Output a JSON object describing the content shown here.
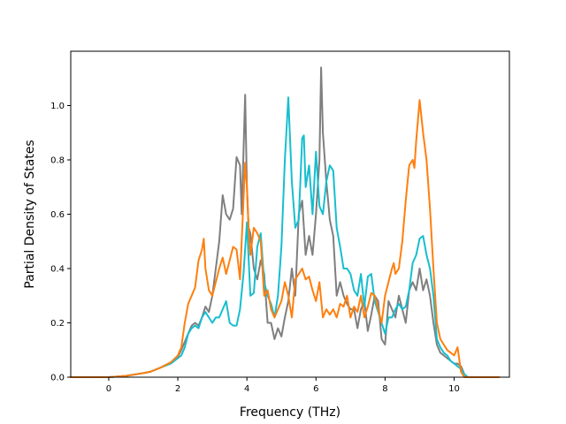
{
  "chart_data": {
    "type": "line",
    "title": "",
    "xlabel": "Frequency (THz)",
    "ylabel": "Partial Density of States",
    "xlim": [
      -1.1,
      11.6
    ],
    "ylim": [
      0.0,
      1.2
    ],
    "xticks": [
      0,
      2,
      4,
      6,
      8,
      10
    ],
    "yticks": [
      0.0,
      0.2,
      0.4,
      0.6,
      0.8,
      1.0
    ],
    "xtick_labels": [
      "0",
      "2",
      "4",
      "6",
      "8",
      "10"
    ],
    "ytick_labels": [
      "0.0",
      "0.2",
      "0.4",
      "0.6",
      "0.8",
      "1.0"
    ],
    "grid": false,
    "legend": "none",
    "series": [
      {
        "color": "#7f7f7f",
        "points": [
          [
            -1.1,
            0
          ],
          [
            0,
            0
          ],
          [
            0.5,
            0.005
          ],
          [
            1.0,
            0.015
          ],
          [
            1.2,
            0.02
          ],
          [
            1.5,
            0.035
          ],
          [
            1.8,
            0.055
          ],
          [
            2.0,
            0.075
          ],
          [
            2.1,
            0.1
          ],
          [
            2.2,
            0.13
          ],
          [
            2.3,
            0.16
          ],
          [
            2.4,
            0.19
          ],
          [
            2.5,
            0.2
          ],
          [
            2.6,
            0.19
          ],
          [
            2.7,
            0.22
          ],
          [
            2.8,
            0.26
          ],
          [
            2.9,
            0.24
          ],
          [
            3.0,
            0.3
          ],
          [
            3.1,
            0.4
          ],
          [
            3.2,
            0.5
          ],
          [
            3.3,
            0.67
          ],
          [
            3.4,
            0.6
          ],
          [
            3.5,
            0.58
          ],
          [
            3.6,
            0.62
          ],
          [
            3.7,
            0.81
          ],
          [
            3.8,
            0.78
          ],
          [
            3.85,
            0.6
          ],
          [
            3.95,
            1.04
          ],
          [
            4.0,
            0.7
          ],
          [
            4.05,
            0.55
          ],
          [
            4.1,
            0.53
          ],
          [
            4.2,
            0.4
          ],
          [
            4.3,
            0.36
          ],
          [
            4.4,
            0.43
          ],
          [
            4.5,
            0.38
          ],
          [
            4.6,
            0.2
          ],
          [
            4.7,
            0.2
          ],
          [
            4.8,
            0.14
          ],
          [
            4.9,
            0.18
          ],
          [
            5.0,
            0.15
          ],
          [
            5.1,
            0.22
          ],
          [
            5.2,
            0.28
          ],
          [
            5.3,
            0.4
          ],
          [
            5.4,
            0.3
          ],
          [
            5.5,
            0.6
          ],
          [
            5.6,
            0.65
          ],
          [
            5.7,
            0.45
          ],
          [
            5.8,
            0.52
          ],
          [
            5.9,
            0.45
          ],
          [
            6.0,
            0.6
          ],
          [
            6.1,
            0.8
          ],
          [
            6.15,
            1.14
          ],
          [
            6.2,
            0.9
          ],
          [
            6.3,
            0.72
          ],
          [
            6.35,
            0.65
          ],
          [
            6.4,
            0.58
          ],
          [
            6.5,
            0.52
          ],
          [
            6.6,
            0.3
          ],
          [
            6.7,
            0.35
          ],
          [
            6.8,
            0.3
          ],
          [
            6.9,
            0.27
          ],
          [
            7.0,
            0.25
          ],
          [
            7.1,
            0.25
          ],
          [
            7.2,
            0.18
          ],
          [
            7.3,
            0.25
          ],
          [
            7.4,
            0.28
          ],
          [
            7.5,
            0.17
          ],
          [
            7.6,
            0.23
          ],
          [
            7.7,
            0.3
          ],
          [
            7.8,
            0.28
          ],
          [
            7.9,
            0.14
          ],
          [
            8.0,
            0.12
          ],
          [
            8.1,
            0.28
          ],
          [
            8.2,
            0.25
          ],
          [
            8.3,
            0.22
          ],
          [
            8.4,
            0.3
          ],
          [
            8.5,
            0.25
          ],
          [
            8.6,
            0.2
          ],
          [
            8.7,
            0.32
          ],
          [
            8.8,
            0.35
          ],
          [
            8.9,
            0.32
          ],
          [
            9.0,
            0.4
          ],
          [
            9.1,
            0.32
          ],
          [
            9.2,
            0.36
          ],
          [
            9.3,
            0.3
          ],
          [
            9.4,
            0.2
          ],
          [
            9.5,
            0.12
          ],
          [
            9.6,
            0.09
          ],
          [
            9.7,
            0.08
          ],
          [
            9.8,
            0.07
          ],
          [
            9.9,
            0.06
          ],
          [
            10.0,
            0.05
          ],
          [
            10.1,
            0.05
          ],
          [
            10.2,
            0.04
          ],
          [
            10.3,
            0.01
          ],
          [
            10.4,
            0
          ],
          [
            11.3,
            0
          ]
        ]
      },
      {
        "color": "#17becf",
        "points": [
          [
            -1.1,
            0
          ],
          [
            0,
            0
          ],
          [
            0.5,
            0.005
          ],
          [
            1.0,
            0.015
          ],
          [
            1.2,
            0.02
          ],
          [
            1.5,
            0.035
          ],
          [
            1.8,
            0.05
          ],
          [
            2.0,
            0.07
          ],
          [
            2.1,
            0.08
          ],
          [
            2.2,
            0.11
          ],
          [
            2.3,
            0.16
          ],
          [
            2.4,
            0.18
          ],
          [
            2.5,
            0.19
          ],
          [
            2.6,
            0.18
          ],
          [
            2.7,
            0.22
          ],
          [
            2.8,
            0.24
          ],
          [
            2.9,
            0.22
          ],
          [
            3.0,
            0.2
          ],
          [
            3.1,
            0.22
          ],
          [
            3.2,
            0.22
          ],
          [
            3.3,
            0.25
          ],
          [
            3.4,
            0.28
          ],
          [
            3.5,
            0.2
          ],
          [
            3.6,
            0.19
          ],
          [
            3.7,
            0.19
          ],
          [
            3.8,
            0.25
          ],
          [
            3.9,
            0.38
          ],
          [
            4.0,
            0.57
          ],
          [
            4.1,
            0.3
          ],
          [
            4.2,
            0.31
          ],
          [
            4.3,
            0.48
          ],
          [
            4.4,
            0.53
          ],
          [
            4.5,
            0.35
          ],
          [
            4.6,
            0.3
          ],
          [
            4.7,
            0.27
          ],
          [
            4.8,
            0.22
          ],
          [
            4.9,
            0.3
          ],
          [
            5.0,
            0.48
          ],
          [
            5.1,
            0.8
          ],
          [
            5.2,
            1.03
          ],
          [
            5.3,
            0.72
          ],
          [
            5.4,
            0.55
          ],
          [
            5.5,
            0.58
          ],
          [
            5.6,
            0.88
          ],
          [
            5.65,
            0.89
          ],
          [
            5.7,
            0.7
          ],
          [
            5.8,
            0.78
          ],
          [
            5.9,
            0.6
          ],
          [
            6.0,
            0.83
          ],
          [
            6.1,
            0.63
          ],
          [
            6.2,
            0.6
          ],
          [
            6.3,
            0.72
          ],
          [
            6.4,
            0.78
          ],
          [
            6.5,
            0.76
          ],
          [
            6.6,
            0.55
          ],
          [
            6.7,
            0.48
          ],
          [
            6.8,
            0.4
          ],
          [
            6.9,
            0.4
          ],
          [
            7.0,
            0.38
          ],
          [
            7.1,
            0.32
          ],
          [
            7.2,
            0.3
          ],
          [
            7.3,
            0.38
          ],
          [
            7.4,
            0.26
          ],
          [
            7.5,
            0.37
          ],
          [
            7.6,
            0.38
          ],
          [
            7.7,
            0.28
          ],
          [
            7.8,
            0.24
          ],
          [
            7.9,
            0.2
          ],
          [
            8.0,
            0.16
          ],
          [
            8.1,
            0.22
          ],
          [
            8.2,
            0.22
          ],
          [
            8.3,
            0.25
          ],
          [
            8.4,
            0.27
          ],
          [
            8.5,
            0.25
          ],
          [
            8.6,
            0.26
          ],
          [
            8.7,
            0.32
          ],
          [
            8.8,
            0.42
          ],
          [
            8.9,
            0.45
          ],
          [
            9.0,
            0.51
          ],
          [
            9.1,
            0.52
          ],
          [
            9.2,
            0.45
          ],
          [
            9.3,
            0.4
          ],
          [
            9.4,
            0.3
          ],
          [
            9.5,
            0.14
          ],
          [
            9.6,
            0.11
          ],
          [
            9.7,
            0.09
          ],
          [
            9.8,
            0.08
          ],
          [
            9.9,
            0.06
          ],
          [
            10.0,
            0.05
          ],
          [
            10.1,
            0.04
          ],
          [
            10.2,
            0.03
          ],
          [
            10.3,
            0.01
          ],
          [
            10.4,
            0
          ],
          [
            11.3,
            0
          ]
        ]
      },
      {
        "color": "#ff7f0e",
        "points": [
          [
            -1.1,
            0
          ],
          [
            0,
            0
          ],
          [
            0.5,
            0.005
          ],
          [
            1.0,
            0.015
          ],
          [
            1.2,
            0.02
          ],
          [
            1.5,
            0.035
          ],
          [
            1.8,
            0.055
          ],
          [
            2.0,
            0.08
          ],
          [
            2.1,
            0.11
          ],
          [
            2.2,
            0.2
          ],
          [
            2.3,
            0.27
          ],
          [
            2.4,
            0.3
          ],
          [
            2.5,
            0.33
          ],
          [
            2.6,
            0.43
          ],
          [
            2.7,
            0.47
          ],
          [
            2.75,
            0.51
          ],
          [
            2.8,
            0.4
          ],
          [
            2.9,
            0.32
          ],
          [
            3.0,
            0.3
          ],
          [
            3.1,
            0.35
          ],
          [
            3.2,
            0.4
          ],
          [
            3.3,
            0.44
          ],
          [
            3.4,
            0.38
          ],
          [
            3.5,
            0.43
          ],
          [
            3.6,
            0.48
          ],
          [
            3.7,
            0.47
          ],
          [
            3.8,
            0.36
          ],
          [
            3.9,
            0.65
          ],
          [
            3.95,
            0.79
          ],
          [
            4.0,
            0.7
          ],
          [
            4.05,
            0.55
          ],
          [
            4.1,
            0.45
          ],
          [
            4.2,
            0.55
          ],
          [
            4.3,
            0.53
          ],
          [
            4.4,
            0.5
          ],
          [
            4.5,
            0.3
          ],
          [
            4.6,
            0.32
          ],
          [
            4.7,
            0.25
          ],
          [
            4.8,
            0.22
          ],
          [
            4.9,
            0.25
          ],
          [
            5.0,
            0.28
          ],
          [
            5.1,
            0.35
          ],
          [
            5.2,
            0.3
          ],
          [
            5.3,
            0.22
          ],
          [
            5.4,
            0.36
          ],
          [
            5.5,
            0.38
          ],
          [
            5.6,
            0.4
          ],
          [
            5.7,
            0.36
          ],
          [
            5.8,
            0.37
          ],
          [
            5.9,
            0.32
          ],
          [
            6.0,
            0.28
          ],
          [
            6.1,
            0.35
          ],
          [
            6.2,
            0.22
          ],
          [
            6.3,
            0.25
          ],
          [
            6.4,
            0.23
          ],
          [
            6.5,
            0.25
          ],
          [
            6.6,
            0.22
          ],
          [
            6.7,
            0.27
          ],
          [
            6.8,
            0.26
          ],
          [
            6.9,
            0.3
          ],
          [
            7.0,
            0.22
          ],
          [
            7.1,
            0.26
          ],
          [
            7.2,
            0.24
          ],
          [
            7.3,
            0.3
          ],
          [
            7.4,
            0.22
          ],
          [
            7.5,
            0.26
          ],
          [
            7.6,
            0.31
          ],
          [
            7.7,
            0.3
          ],
          [
            7.8,
            0.25
          ],
          [
            7.9,
            0.2
          ],
          [
            8.0,
            0.3
          ],
          [
            8.1,
            0.35
          ],
          [
            8.2,
            0.4
          ],
          [
            8.25,
            0.42
          ],
          [
            8.3,
            0.38
          ],
          [
            8.4,
            0.4
          ],
          [
            8.5,
            0.5
          ],
          [
            8.6,
            0.65
          ],
          [
            8.7,
            0.78
          ],
          [
            8.8,
            0.8
          ],
          [
            8.85,
            0.77
          ],
          [
            8.9,
            0.87
          ],
          [
            9.0,
            1.02
          ],
          [
            9.1,
            0.9
          ],
          [
            9.2,
            0.8
          ],
          [
            9.3,
            0.62
          ],
          [
            9.4,
            0.4
          ],
          [
            9.5,
            0.2
          ],
          [
            9.6,
            0.14
          ],
          [
            9.7,
            0.12
          ],
          [
            9.8,
            0.1
          ],
          [
            9.9,
            0.09
          ],
          [
            10.0,
            0.08
          ],
          [
            10.1,
            0.11
          ],
          [
            10.2,
            0.02
          ],
          [
            10.3,
            0
          ],
          [
            11.3,
            0
          ]
        ]
      }
    ]
  }
}
